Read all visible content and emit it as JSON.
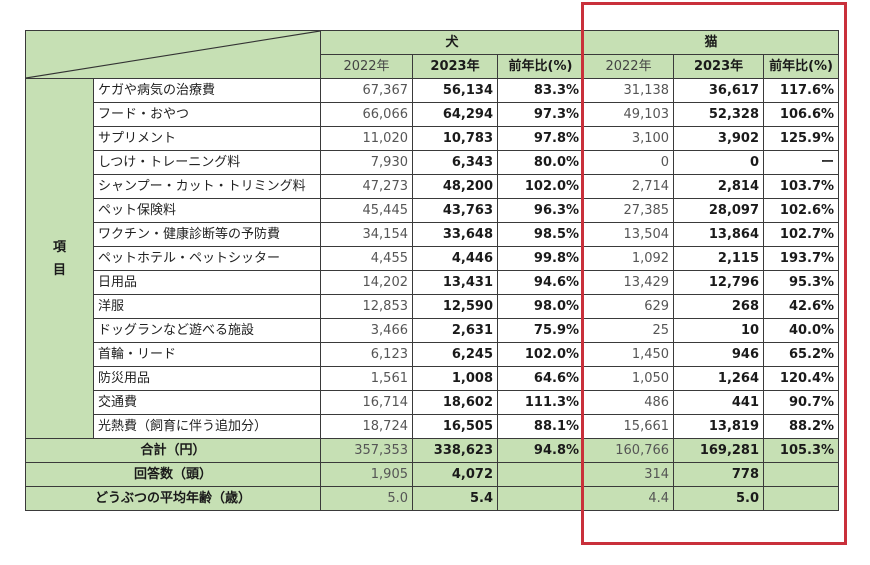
{
  "table": {
    "animals": [
      {
        "label": "犬"
      },
      {
        "label": "猫"
      }
    ],
    "col_headers": {
      "y2022": "2022年",
      "y2023": "2023年",
      "ratio": "前年比(%)"
    },
    "group_label_line1": "項",
    "group_label_line2": "目",
    "rows": [
      {
        "item": "ケガや病気の治療費",
        "dog": [
          "67,367",
          "56,134",
          "83.3%"
        ],
        "cat": [
          "31,138",
          "36,617",
          "117.6%"
        ]
      },
      {
        "item": "フード・おやつ",
        "dog": [
          "66,066",
          "64,294",
          "97.3%"
        ],
        "cat": [
          "49,103",
          "52,328",
          "106.6%"
        ]
      },
      {
        "item": "サプリメント",
        "dog": [
          "11,020",
          "10,783",
          "97.8%"
        ],
        "cat": [
          "3,100",
          "3,902",
          "125.9%"
        ]
      },
      {
        "item": "しつけ・トレーニング料",
        "dog": [
          "7,930",
          "6,343",
          "80.0%"
        ],
        "cat": [
          "0",
          "0",
          "ー"
        ]
      },
      {
        "item": "シャンプー・カット・トリミング料",
        "dog": [
          "47,273",
          "48,200",
          "102.0%"
        ],
        "cat": [
          "2,714",
          "2,814",
          "103.7%"
        ]
      },
      {
        "item": "ペット保険料",
        "dog": [
          "45,445",
          "43,763",
          "96.3%"
        ],
        "cat": [
          "27,385",
          "28,097",
          "102.6%"
        ]
      },
      {
        "item": "ワクチン・健康診断等の予防費",
        "dog": [
          "34,154",
          "33,648",
          "98.5%"
        ],
        "cat": [
          "13,504",
          "13,864",
          "102.7%"
        ]
      },
      {
        "item": "ペットホテル・ペットシッター",
        "dog": [
          "4,455",
          "4,446",
          "99.8%"
        ],
        "cat": [
          "1,092",
          "2,115",
          "193.7%"
        ]
      },
      {
        "item": "日用品",
        "dog": [
          "14,202",
          "13,431",
          "94.6%"
        ],
        "cat": [
          "13,429",
          "12,796",
          "95.3%"
        ]
      },
      {
        "item": "洋服",
        "dog": [
          "12,853",
          "12,590",
          "98.0%"
        ],
        "cat": [
          "629",
          "268",
          "42.6%"
        ]
      },
      {
        "item": "ドッグランなど遊べる施設",
        "dog": [
          "3,466",
          "2,631",
          "75.9%"
        ],
        "cat": [
          "25",
          "10",
          "40.0%"
        ]
      },
      {
        "item": "首輪・リード",
        "dog": [
          "6,123",
          "6,245",
          "102.0%"
        ],
        "cat": [
          "1,450",
          "946",
          "65.2%"
        ]
      },
      {
        "item": "防災用品",
        "dog": [
          "1,561",
          "1,008",
          "64.6%"
        ],
        "cat": [
          "1,050",
          "1,264",
          "120.4%"
        ]
      },
      {
        "item": "交通費",
        "dog": [
          "16,714",
          "18,602",
          "111.3%"
        ],
        "cat": [
          "486",
          "441",
          "90.7%"
        ]
      },
      {
        "item": "光熱費（飼育に伴う追加分）",
        "dog": [
          "18,724",
          "16,505",
          "88.1%"
        ],
        "cat": [
          "15,661",
          "13,819",
          "88.2%"
        ]
      }
    ],
    "summary": [
      {
        "label": "合計（円）",
        "dog": [
          "357,353",
          "338,623",
          "94.8%"
        ],
        "cat": [
          "160,766",
          "169,281",
          "105.3%"
        ]
      },
      {
        "label": "回答数（頭）",
        "dog": [
          "1,905",
          "4,072",
          ""
        ],
        "cat": [
          "314",
          "778",
          ""
        ]
      },
      {
        "label": "どうぶつの平均年齢（歳）",
        "dog": [
          "5.0",
          "5.4",
          ""
        ],
        "cat": [
          "4.4",
          "5.0",
          ""
        ]
      }
    ]
  },
  "highlight": {
    "color": "#c9303b",
    "target": "猫"
  },
  "colors": {
    "header_green": "#c6e0b4",
    "border": "#3a3a3a"
  }
}
